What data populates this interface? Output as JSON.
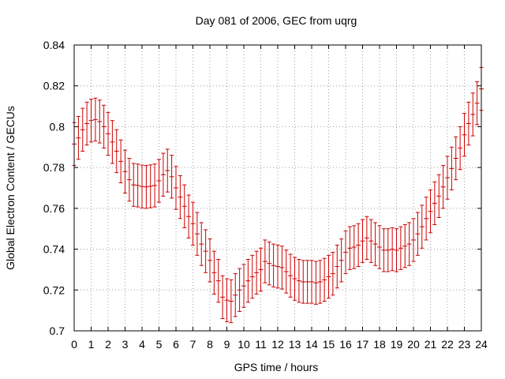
{
  "chart_data": {
    "type": "scatter",
    "subtype": "errorbar",
    "title": "Day 081 of 2006, GEC from uqrg",
    "xlabel": "GPS time / hours",
    "ylabel": "Global Electron Content / GECUs",
    "xlim": [
      0,
      24
    ],
    "ylim": [
      0.7,
      0.84
    ],
    "xticks": [
      "0",
      "1",
      "2",
      "3",
      "4",
      "5",
      "6",
      "7",
      "8",
      "9",
      "10",
      "11",
      "12",
      "13",
      "14",
      "15",
      "16",
      "17",
      "18",
      "19",
      "20",
      "21",
      "22",
      "23",
      "24"
    ],
    "yticks": [
      "0.7",
      "0.72",
      "0.74",
      "0.76",
      "0.78",
      "0.8",
      "0.82",
      "0.84"
    ],
    "grid": true,
    "series": [
      {
        "name": "GEC",
        "color": "#cc0000",
        "x": [
          0.0,
          0.25,
          0.5,
          0.75,
          1.0,
          1.25,
          1.5,
          1.75,
          2.0,
          2.25,
          2.5,
          2.75,
          3.0,
          3.25,
          3.5,
          3.75,
          4.0,
          4.25,
          4.5,
          4.75,
          5.0,
          5.25,
          5.5,
          5.75,
          6.0,
          6.25,
          6.5,
          6.75,
          7.0,
          7.25,
          7.5,
          7.75,
          8.0,
          8.25,
          8.5,
          8.75,
          9.0,
          9.25,
          9.5,
          9.75,
          10.0,
          10.25,
          10.5,
          10.75,
          11.0,
          11.25,
          11.5,
          11.75,
          12.0,
          12.25,
          12.5,
          12.75,
          13.0,
          13.25,
          13.5,
          13.75,
          14.0,
          14.25,
          14.5,
          14.75,
          15.0,
          15.25,
          15.5,
          15.75,
          16.0,
          16.25,
          16.5,
          16.75,
          17.0,
          17.25,
          17.5,
          17.75,
          18.0,
          18.25,
          18.5,
          18.75,
          19.0,
          19.25,
          19.5,
          19.75,
          20.0,
          20.25,
          20.5,
          20.75,
          21.0,
          21.25,
          21.5,
          21.75,
          22.0,
          22.25,
          22.5,
          22.75,
          23.0,
          23.25,
          23.5,
          23.75,
          24.0
        ],
        "y": [
          0.7915,
          0.7945,
          0.7985,
          0.8015,
          0.803,
          0.8035,
          0.8025,
          0.8,
          0.7965,
          0.7925,
          0.788,
          0.783,
          0.778,
          0.774,
          0.7715,
          0.7712,
          0.7707,
          0.7705,
          0.7708,
          0.7712,
          0.7735,
          0.7765,
          0.7785,
          0.7755,
          0.77,
          0.7655,
          0.761,
          0.756,
          0.7525,
          0.7475,
          0.7425,
          0.739,
          0.7345,
          0.7285,
          0.7245,
          0.7165,
          0.715,
          0.7145,
          0.7175,
          0.72,
          0.722,
          0.7245,
          0.7265,
          0.7285,
          0.73,
          0.734,
          0.733,
          0.732,
          0.7315,
          0.731,
          0.729,
          0.727,
          0.7255,
          0.7245,
          0.724,
          0.724,
          0.724,
          0.7235,
          0.724,
          0.725,
          0.7265,
          0.728,
          0.7315,
          0.7345,
          0.7385,
          0.7405,
          0.741,
          0.742,
          0.744,
          0.7455,
          0.744,
          0.7425,
          0.741,
          0.7395,
          0.7395,
          0.74,
          0.7395,
          0.7405,
          0.7415,
          0.7425,
          0.7445,
          0.7475,
          0.751,
          0.755,
          0.7585,
          0.7625,
          0.766,
          0.7705,
          0.775,
          0.7795,
          0.7845,
          0.7895,
          0.796,
          0.8015,
          0.806,
          0.8115,
          0.8185
        ],
        "err": 0.0105
      }
    ]
  }
}
